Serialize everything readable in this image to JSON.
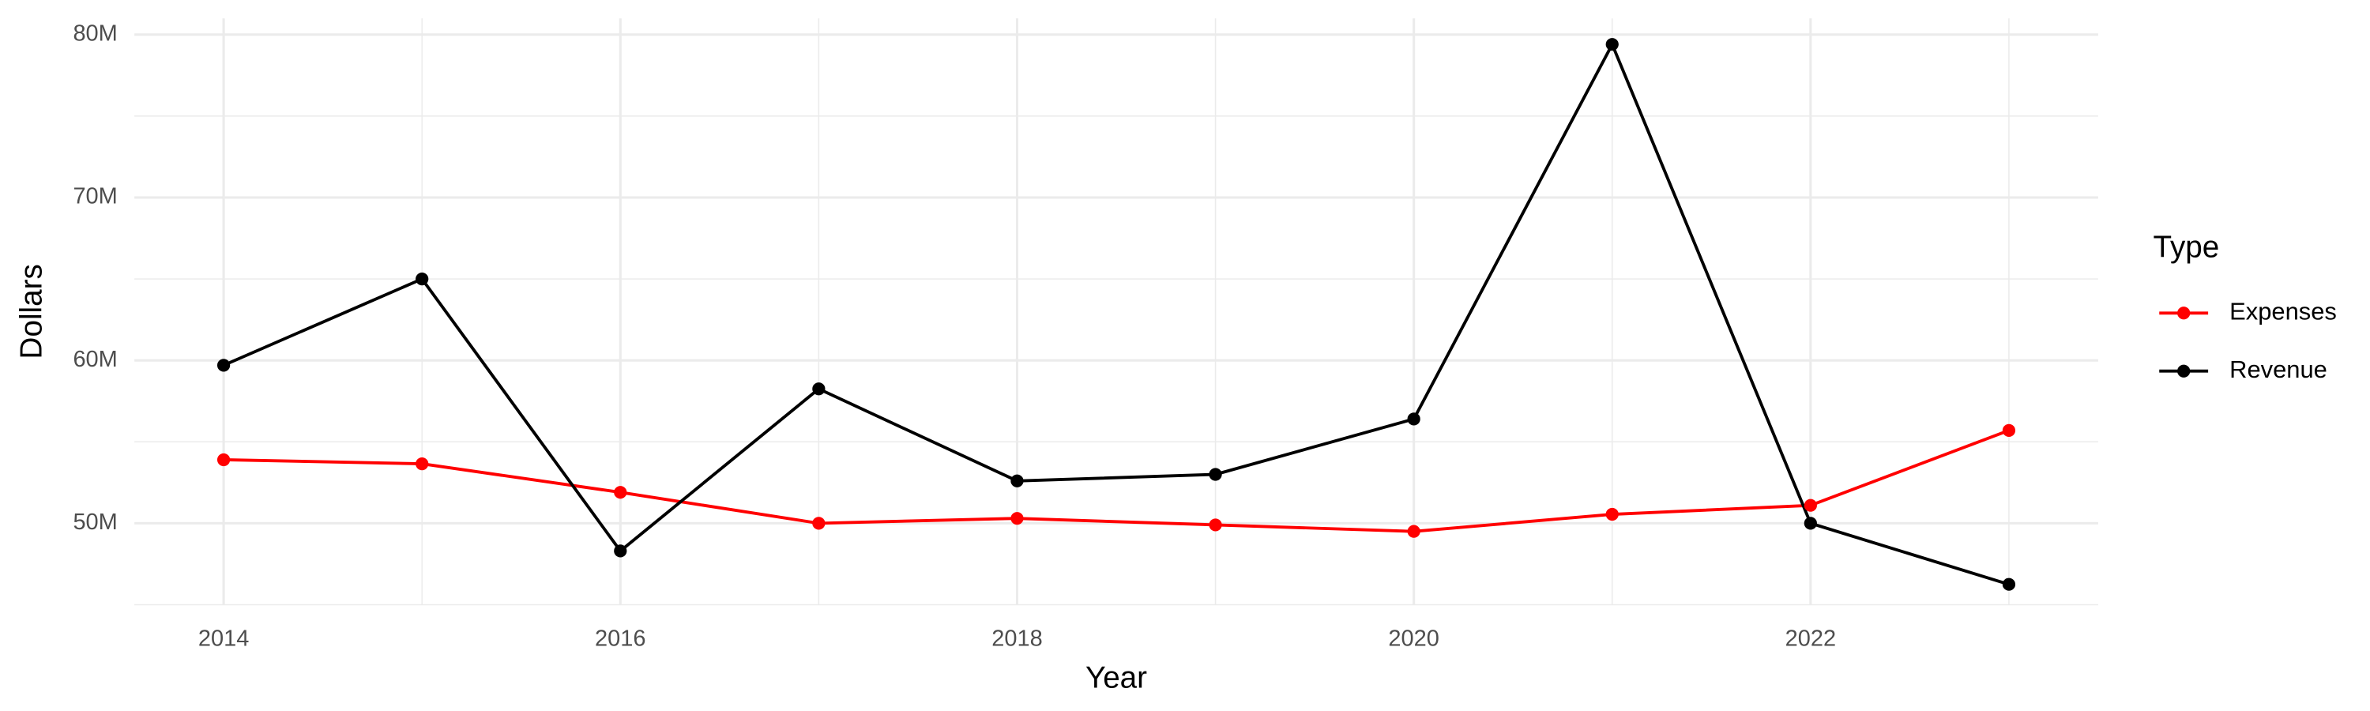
{
  "chart_data": {
    "type": "line",
    "x_label": "Year",
    "y_label": "Dollars",
    "legend_title": "Type",
    "x": [
      2014,
      2015,
      2016,
      2017,
      2018,
      2019,
      2020,
      2021,
      2022,
      2023
    ],
    "series": [
      {
        "name": "Expenses",
        "color": "#ff0000",
        "values": [
          53900000,
          53650000,
          51900000,
          50000000,
          50300000,
          49900000,
          49500000,
          50550000,
          51100000,
          55700000
        ]
      },
      {
        "name": "Revenue",
        "color": "#000000",
        "values": [
          59700000,
          65000000,
          48300000,
          58250000,
          52600000,
          53000000,
          56400000,
          79400000,
          50000000,
          46250000
        ]
      }
    ],
    "xlim": [
      2013.55,
      2023.45
    ],
    "ylim": [
      45000000,
      81000000
    ],
    "xticks": [
      2014,
      2016,
      2018,
      2020,
      2022
    ],
    "yticks": [
      {
        "value": 50000000,
        "label": "50M"
      },
      {
        "value": 60000000,
        "label": "60M"
      },
      {
        "value": 70000000,
        "label": "70M"
      },
      {
        "value": 80000000,
        "label": "80M"
      }
    ],
    "x_minor_ticks": [
      2015,
      2017,
      2019,
      2021,
      2023
    ],
    "y_minor_ticks": [
      45000000,
      55000000,
      65000000,
      75000000
    ],
    "grid": true,
    "legend_position": "right"
  }
}
